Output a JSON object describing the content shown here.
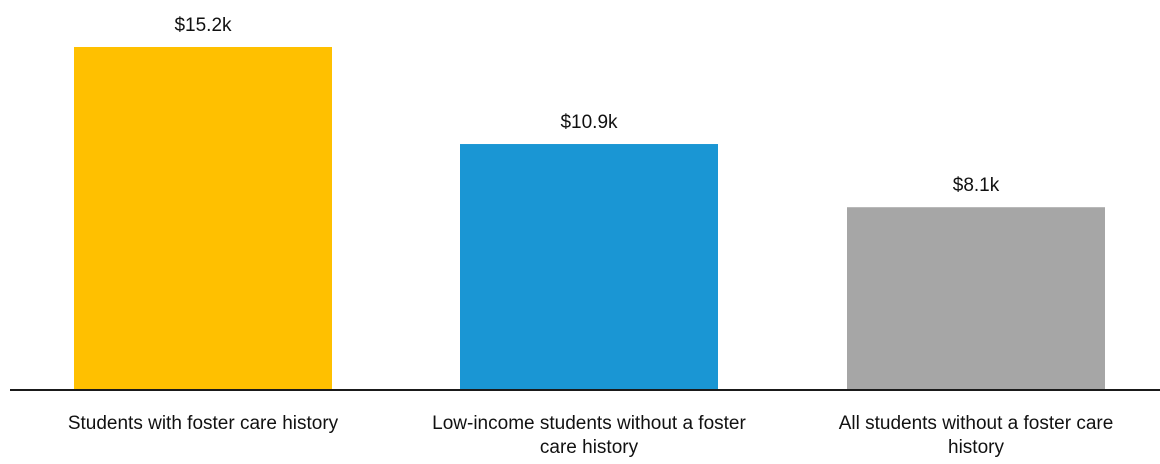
{
  "chart_data": {
    "type": "bar",
    "title": "",
    "xlabel": "",
    "ylabel": "",
    "categories": [
      "Students with foster care history",
      "Low-income students without a foster care history",
      "All students without a foster care history"
    ],
    "category_label_lines": [
      [
        "Students with foster care history"
      ],
      [
        "Low-income students without a foster",
        "care history"
      ],
      [
        "All students without a foster care",
        "history"
      ]
    ],
    "values": [
      15.2,
      10.9,
      8.1
    ],
    "value_labels": [
      "$15.2k",
      "$10.9k",
      "$8.1k"
    ],
    "colors": [
      "#FFC000",
      "#1A96D4",
      "#A6A6A6"
    ],
    "ylim": [
      0,
      15.2
    ],
    "grid": false,
    "legend": "none"
  }
}
